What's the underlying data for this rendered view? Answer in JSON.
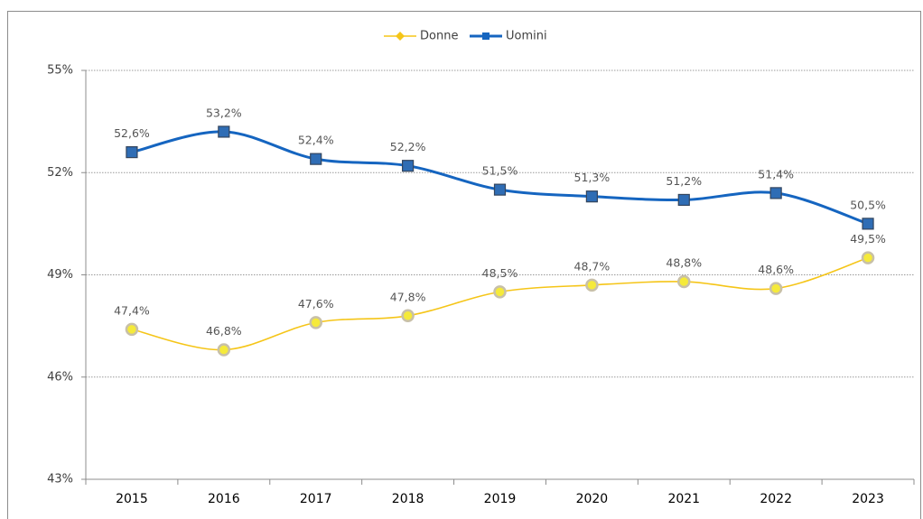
{
  "chart_data": {
    "type": "line",
    "categories": [
      "2015",
      "2016",
      "2017",
      "2018",
      "2019",
      "2020",
      "2021",
      "2022",
      "2023"
    ],
    "series": [
      {
        "name": "Donne",
        "color": "#f5c518",
        "values": [
          47.4,
          46.8,
          47.6,
          47.8,
          48.5,
          48.7,
          48.8,
          48.6,
          49.5
        ],
        "value_labels": [
          "47,4%",
          "46,8%",
          "47,6%",
          "47,8%",
          "48,5%",
          "48,7%",
          "48,8%",
          "48,6%",
          "49,5%"
        ]
      },
      {
        "name": "Uomini",
        "color": "#1565c0",
        "values": [
          52.6,
          53.2,
          52.4,
          52.2,
          51.5,
          51.3,
          51.2,
          51.4,
          50.5
        ],
        "value_labels": [
          "52,6%",
          "53,2%",
          "52,4%",
          "52,2%",
          "51,5%",
          "51,3%",
          "51,2%",
          "51,4%",
          "50,5%"
        ]
      }
    ],
    "ylim": [
      43,
      55
    ],
    "yticks": [
      {
        "value": 43,
        "label": "43%"
      },
      {
        "value": 46,
        "label": "46%"
      },
      {
        "value": 49,
        "label": "49%"
      },
      {
        "value": 52,
        "label": "52%"
      },
      {
        "value": 55,
        "label": "55%"
      }
    ],
    "grid": true,
    "legend": "top"
  }
}
